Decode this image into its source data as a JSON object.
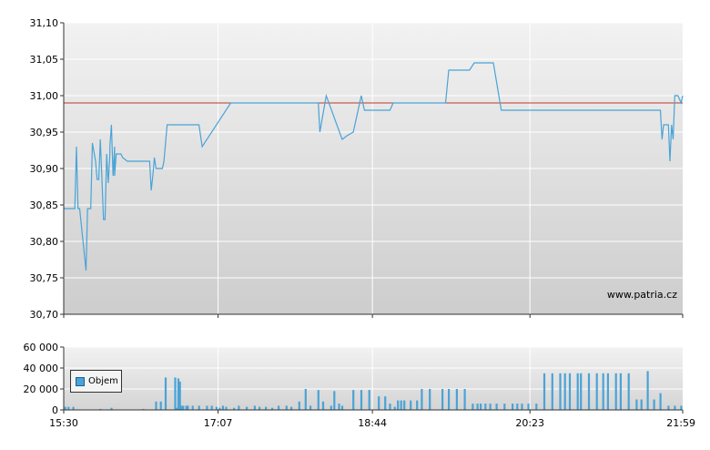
{
  "chart_data": [
    {
      "type": "line",
      "title": "",
      "xlabel": "",
      "ylabel": "",
      "ylim": [
        30.7,
        31.1
      ],
      "yticks": [
        "31,10",
        "31,05",
        "31,00",
        "30,95",
        "30,90",
        "30,85",
        "30,80",
        "30,75",
        "30,70"
      ],
      "ytick_values": [
        31.1,
        31.05,
        31.0,
        30.95,
        30.9,
        30.85,
        30.8,
        30.75,
        30.7
      ],
      "xlim": [
        "15:30",
        "21:59"
      ],
      "reference_line": {
        "value": 30.99,
        "color": "#c0392b"
      },
      "line_color": "#4aa3d6",
      "grid": true,
      "watermark": "www.patria.cz",
      "series": [
        {
          "x": [
            "15:30",
            "15:37",
            "15:38",
            "15:39",
            "15:40",
            "15:44",
            "15:45",
            "15:47",
            "15:48",
            "15:50",
            "15:51",
            "15:52",
            "15:53",
            "15:54",
            "15:54",
            "15:55",
            "15:56",
            "15:57",
            "15:58",
            "15:59",
            "15:59",
            "16:00",
            "16:01",
            "16:02",
            "16:02",
            "16:03",
            "16:04",
            "16:05",
            "16:06",
            "16:07",
            "16:10",
            "16:15",
            "16:20",
            "16:24",
            "16:25",
            "16:26",
            "16:27",
            "16:28",
            "16:30",
            "16:32",
            "16:33",
            "16:35",
            "16:50",
            "16:55",
            "16:57",
            "17:15",
            "17:17",
            "18:10",
            "18:11",
            "18:15",
            "18:25",
            "18:28",
            "18:32",
            "18:37",
            "18:39",
            "18:40",
            "18:42",
            "18:50",
            "18:53",
            "18:55",
            "18:57",
            "19:04",
            "19:30",
            "19:32",
            "19:45",
            "19:48",
            "19:50",
            "20:00",
            "20:05",
            "20:10",
            "20:20",
            "20:50",
            "21:45",
            "21:46",
            "21:47",
            "21:48",
            "21:50",
            "21:51",
            "21:52",
            "21:53",
            "21:54",
            "21:56",
            "21:58",
            "21:59"
          ],
          "y": [
            30.845,
            30.845,
            30.93,
            30.845,
            30.845,
            30.76,
            30.845,
            30.845,
            30.935,
            30.91,
            30.885,
            30.885,
            30.94,
            30.885,
            30.885,
            30.83,
            30.83,
            30.92,
            30.88,
            30.92,
            30.93,
            30.96,
            30.89,
            30.93,
            30.89,
            30.92,
            30.92,
            30.92,
            30.92,
            30.915,
            30.91,
            30.91,
            30.91,
            30.91,
            30.87,
            30.89,
            30.915,
            30.9,
            30.9,
            30.9,
            30.91,
            30.96,
            30.96,
            30.96,
            30.93,
            30.99,
            30.99,
            30.99,
            30.95,
            31.0,
            30.94,
            30.945,
            30.95,
            31.0,
            30.98,
            30.98,
            30.98,
            30.98,
            30.98,
            30.98,
            30.99,
            30.99,
            30.99,
            31.035,
            31.035,
            31.045,
            31.045,
            31.045,
            30.98,
            30.98,
            30.98,
            30.98,
            30.98,
            30.94,
            30.96,
            30.96,
            30.96,
            30.91,
            30.96,
            30.94,
            31.0,
            31.0,
            30.99,
            31.0
          ]
        }
      ]
    },
    {
      "type": "bar",
      "title": "",
      "xlabel": "",
      "ylabel": "",
      "ylim": [
        0,
        60000
      ],
      "yticks": [
        "60 000",
        "40 000",
        "20 000",
        "0"
      ],
      "ytick_values": [
        60000,
        40000,
        20000,
        0
      ],
      "xticks": [
        "15:30",
        "17:07",
        "18:44",
        "20:23",
        "21:59"
      ],
      "bar_color": "#4aa3d6",
      "legend": {
        "position": "bottom-left",
        "entries": [
          "Objem"
        ]
      },
      "series": [
        {
          "name": "Objem",
          "x": [
            "15:31",
            "15:33",
            "15:36",
            "15:53",
            "16:00",
            "16:20",
            "16:28",
            "16:31",
            "16:34",
            "16:40",
            "16:41",
            "16:42",
            "16:43",
            "16:44",
            "16:45",
            "16:47",
            "16:48",
            "16:51",
            "16:55",
            "17:00",
            "17:03",
            "17:06",
            "17:08",
            "17:10",
            "17:12",
            "17:17",
            "17:20",
            "17:25",
            "17:30",
            "17:33",
            "17:37",
            "17:41",
            "17:45",
            "17:50",
            "17:53",
            "17:58",
            "18:02",
            "18:05",
            "18:10",
            "18:13",
            "18:18",
            "18:20",
            "18:23",
            "18:25",
            "18:32",
            "18:37",
            "18:42",
            "18:48",
            "18:52",
            "18:55",
            "18:58",
            "19:00",
            "19:02",
            "19:04",
            "19:08",
            "19:12",
            "19:15",
            "19:20",
            "19:28",
            "19:32",
            "19:37",
            "19:42",
            "19:47",
            "19:50",
            "19:52",
            "19:55",
            "19:58",
            "20:02",
            "20:07",
            "20:12",
            "20:15",
            "20:18",
            "20:22",
            "20:27",
            "20:32",
            "20:37",
            "20:42",
            "20:45",
            "20:48",
            "20:53",
            "20:55",
            "21:00",
            "21:05",
            "21:09",
            "21:12",
            "21:17",
            "21:20",
            "21:25",
            "21:30",
            "21:33",
            "21:37",
            "21:41",
            "21:45",
            "21:50",
            "21:54",
            "21:58"
          ],
          "values": [
            3000,
            3000,
            3000,
            1000,
            2000,
            1000,
            8000,
            8000,
            31000,
            31000,
            2000,
            30000,
            27000,
            4000,
            4000,
            4000,
            4000,
            4000,
            4000,
            4000,
            4000,
            3000,
            2000,
            4000,
            3000,
            2000,
            4000,
            3000,
            4000,
            3000,
            3000,
            2000,
            4000,
            4000,
            3000,
            8000,
            20000,
            4000,
            19000,
            8000,
            4000,
            18000,
            6000,
            4000,
            19000,
            19000,
            19000,
            13000,
            13000,
            6000,
            3000,
            9000,
            9000,
            9000,
            9000,
            9000,
            20000,
            20000,
            20000,
            20000,
            20000,
            20000,
            6000,
            6000,
            6000,
            6000,
            6000,
            6000,
            6000,
            6000,
            6000,
            6000,
            6000,
            6000,
            35000,
            35000,
            35000,
            35000,
            35000,
            35000,
            35000,
            35000,
            35000,
            35000,
            35000,
            35000,
            35000,
            35000,
            10000,
            10000,
            37000,
            10000,
            16000,
            4000,
            4000,
            4000
          ]
        }
      ]
    }
  ]
}
